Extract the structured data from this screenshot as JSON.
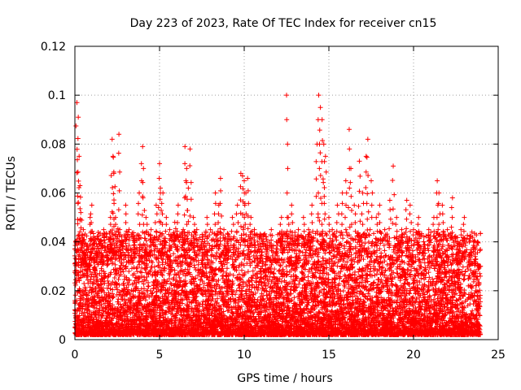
{
  "chart_data": {
    "type": "scatter",
    "title": "Day 223 of 2023, Rate Of TEC Index for receiver cn15",
    "xlabel": "GPS time / hours",
    "ylabel": "ROTI / TECUs",
    "xlim": [
      0,
      25
    ],
    "ylim": [
      0,
      0.12
    ],
    "xticks": [
      0,
      5,
      10,
      15,
      20,
      25
    ],
    "xtick_labels": [
      "0",
      "5",
      "10",
      "15",
      "20",
      "25"
    ],
    "yticks": [
      0,
      0.02,
      0.04,
      0.06,
      0.08,
      0.1,
      0.12
    ],
    "ytick_labels": [
      "0",
      "0.02",
      "0.04",
      "0.06",
      "0.08",
      "0.1",
      "0.12"
    ],
    "grid": true,
    "marker": "+",
    "color": "#ff0000",
    "series": [
      {
        "x": [
          0.05,
          0.12,
          0.2,
          0.25,
          0.3,
          0.35,
          0.4,
          0.5,
          0.6,
          0.7,
          0.8,
          0.9,
          1.0,
          1.1,
          1.2,
          1.3,
          1.5,
          1.7,
          1.9,
          2.1,
          2.2,
          2.25,
          2.3,
          2.4,
          2.6,
          2.65,
          2.8,
          3.0,
          3.2,
          3.5,
          3.8,
          4.0,
          4.05,
          4.2,
          4.5,
          4.8,
          5.0,
          5.05,
          5.2,
          5.4,
          5.6,
          5.9,
          6.1,
          6.4,
          6.5,
          6.6,
          6.7,
          6.8,
          7.0,
          7.2,
          7.5,
          7.8,
          8.0,
          8.3,
          8.5,
          8.6,
          8.8,
          9.0,
          9.3,
          9.6,
          9.8,
          9.9,
          10.0,
          10.1,
          10.2,
          10.4,
          10.6,
          10.8,
          11.0,
          11.3,
          11.6,
          11.9,
          12.2,
          12.5,
          12.6,
          12.8,
          13.0,
          13.2,
          13.5,
          13.8,
          14.0,
          14.3,
          14.4,
          14.5,
          14.6,
          14.7,
          14.8,
          15.0,
          15.2,
          15.5,
          15.8,
          16.0,
          16.2,
          16.3,
          16.5,
          16.8,
          17.0,
          17.2,
          17.3,
          17.5,
          17.8,
          18.0,
          18.3,
          18.6,
          18.8,
          19.0,
          19.3,
          19.6,
          19.8,
          20.0,
          20.3,
          20.6,
          20.9,
          21.2,
          21.4,
          21.5,
          21.7,
          22.0,
          22.3,
          22.6,
          22.8,
          23.0,
          23.3,
          23.6,
          23.9
        ],
        "y": [
          0.04,
          0.097,
          0.091,
          0.075,
          0.063,
          0.052,
          0.04,
          0.045,
          0.035,
          0.038,
          0.03,
          0.05,
          0.055,
          0.042,
          0.028,
          0.035,
          0.04,
          0.045,
          0.038,
          0.05,
          0.082,
          0.075,
          0.068,
          0.05,
          0.084,
          0.045,
          0.04,
          0.055,
          0.045,
          0.042,
          0.06,
          0.079,
          0.07,
          0.05,
          0.045,
          0.055,
          0.072,
          0.062,
          0.06,
          0.05,
          0.045,
          0.048,
          0.055,
          0.045,
          0.079,
          0.07,
          0.062,
          0.078,
          0.05,
          0.045,
          0.04,
          0.05,
          0.045,
          0.06,
          0.055,
          0.066,
          0.045,
          0.04,
          0.05,
          0.055,
          0.068,
          0.067,
          0.065,
          0.06,
          0.066,
          0.05,
          0.045,
          0.04,
          0.038,
          0.042,
          0.045,
          0.04,
          0.05,
          0.1,
          0.05,
          0.055,
          0.042,
          0.045,
          0.05,
          0.045,
          0.055,
          0.08,
          0.1,
          0.095,
          0.09,
          0.08,
          0.075,
          0.05,
          0.045,
          0.055,
          0.06,
          0.065,
          0.086,
          0.07,
          0.055,
          0.073,
          0.06,
          0.075,
          0.082,
          0.065,
          0.05,
          0.055,
          0.045,
          0.057,
          0.071,
          0.05,
          0.045,
          0.057,
          0.055,
          0.045,
          0.05,
          0.04,
          0.045,
          0.05,
          0.065,
          0.06,
          0.055,
          0.045,
          0.058,
          0.04,
          0.045,
          0.05,
          0.035,
          0.037,
          0.03
        ]
      }
    ]
  }
}
